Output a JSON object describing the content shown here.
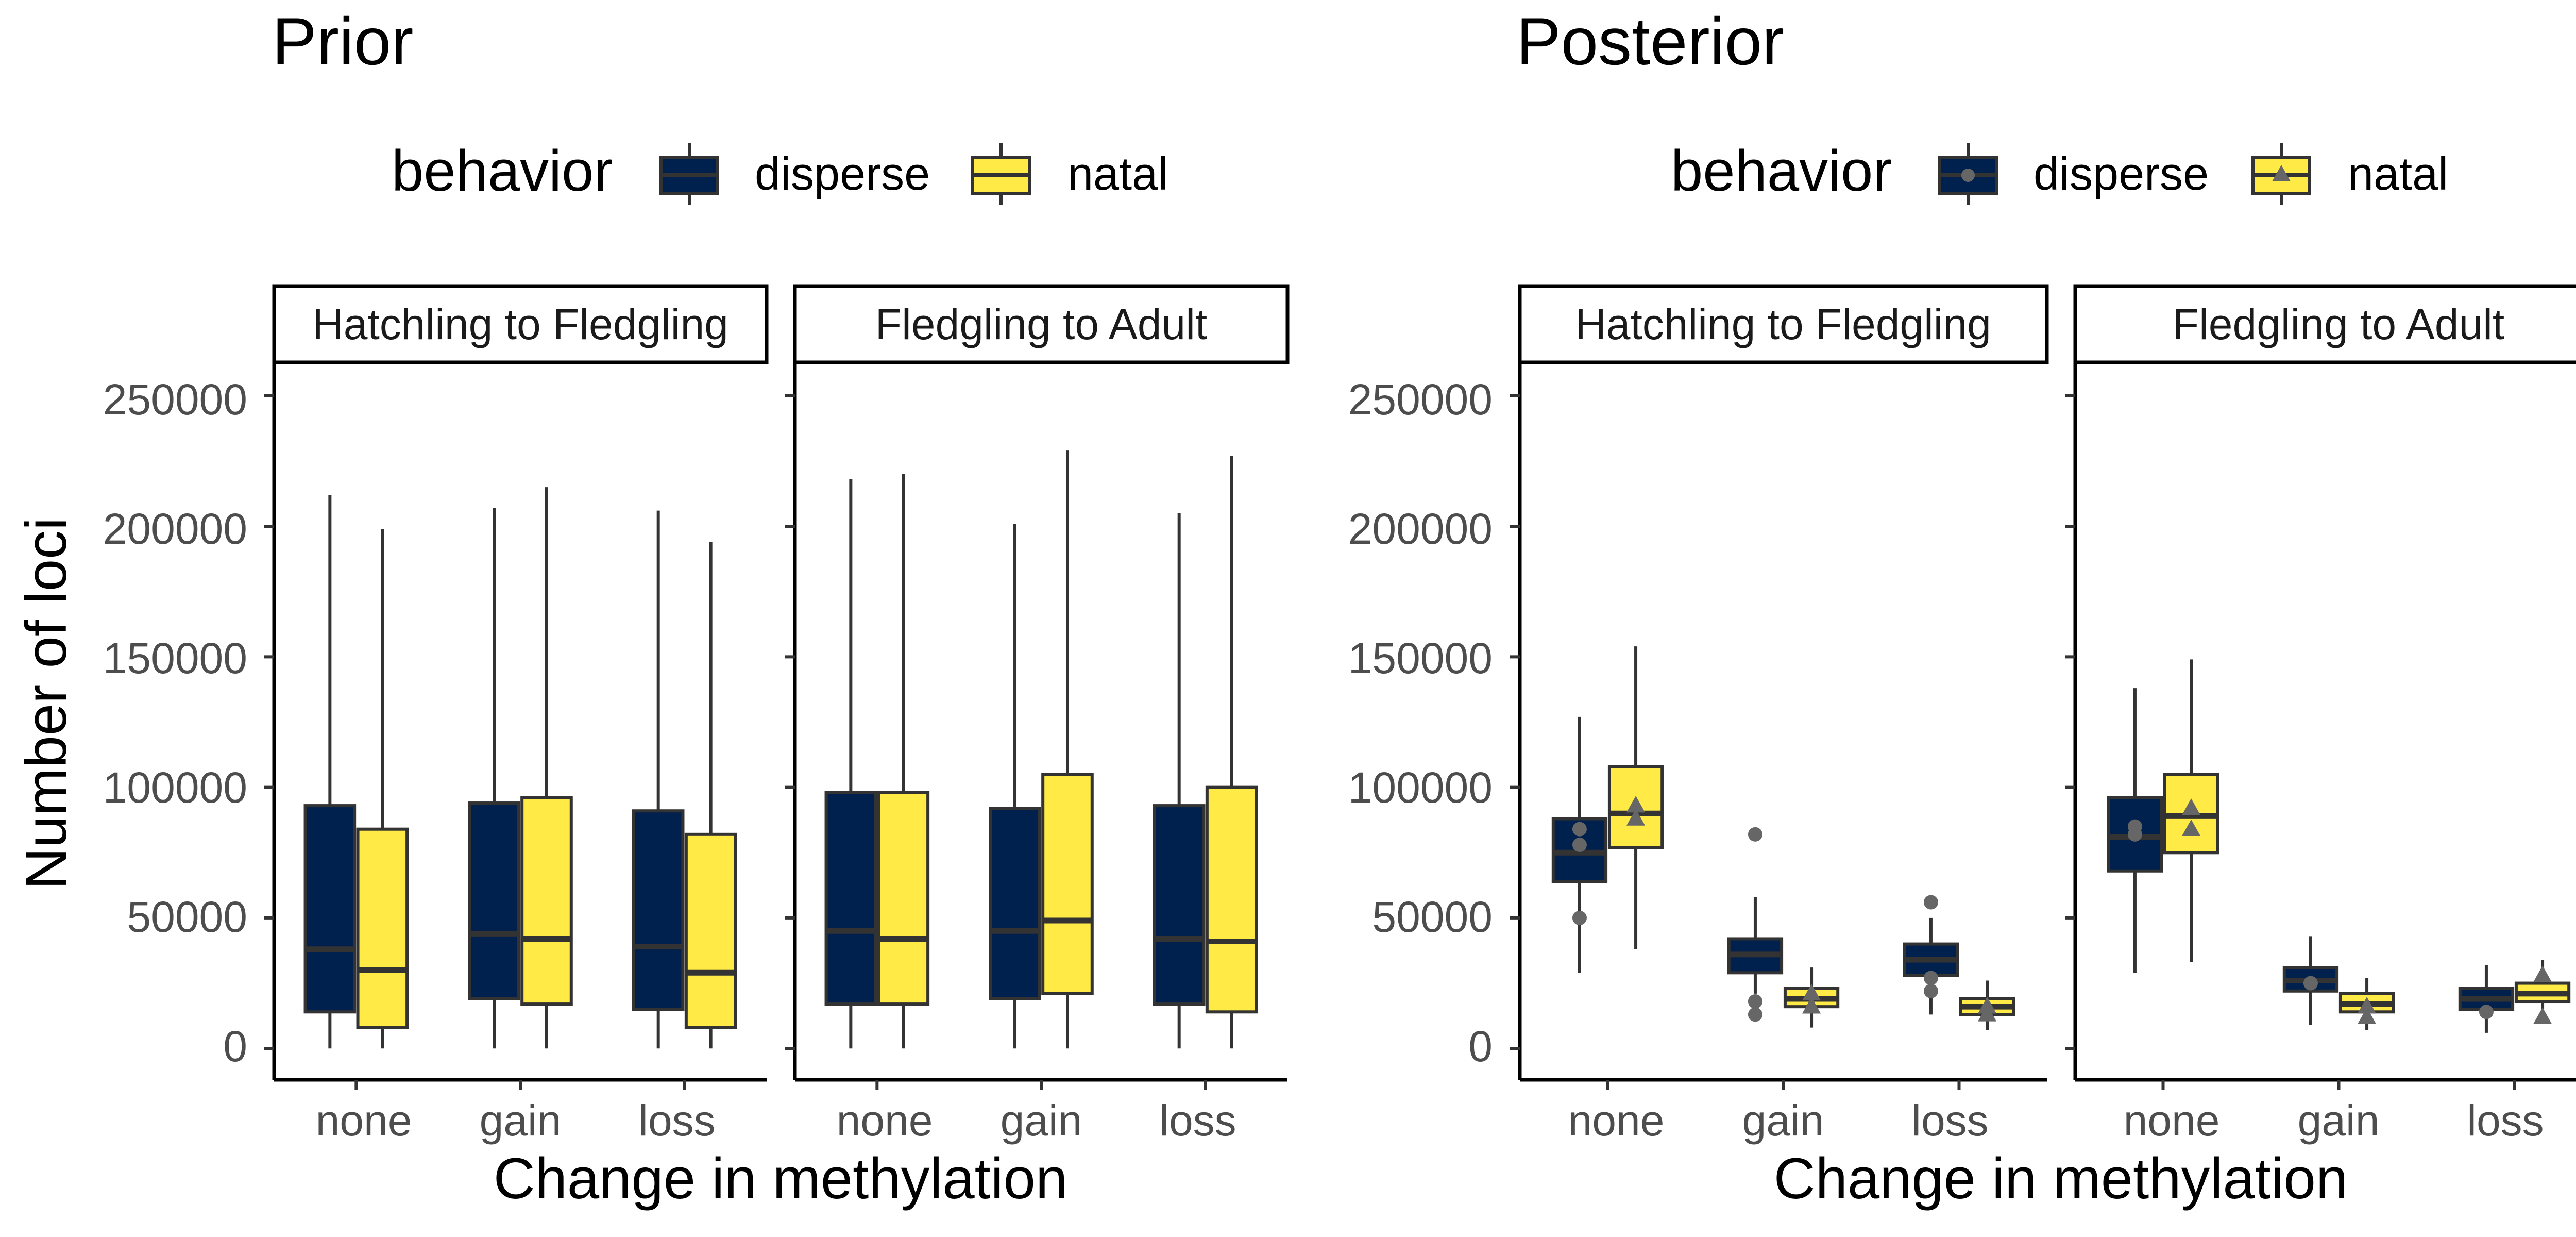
{
  "colors": {
    "disperse": "#00204D",
    "natal": "#FFEA46",
    "stroke": "#333333",
    "point": "#666666",
    "tick_text": "#4D4D4D"
  },
  "chart_data": [
    {
      "type": "box",
      "title": "Prior",
      "legend": {
        "title": "behavior",
        "entries": [
          "disperse",
          "natal"
        ],
        "position": "top"
      },
      "xlabel": "Change in methylation",
      "ylabel": "Number of loci",
      "ylim": [
        -12000,
        262000
      ],
      "yticks": [
        0,
        50000,
        100000,
        150000,
        200000,
        250000
      ],
      "ytick_labels": [
        "0",
        "50000",
        "100000",
        "150000",
        "200000",
        "250000"
      ],
      "categories": [
        "none",
        "gain",
        "loss"
      ],
      "grid": false,
      "facets": [
        {
          "label": "Hatchling to Fledgling",
          "boxes": [
            {
              "category": "none",
              "group": "disperse",
              "min": 0,
              "q1": 14000,
              "median": 38000,
              "q3": 93000,
              "max": 212000
            },
            {
              "category": "none",
              "group": "natal",
              "min": 0,
              "q1": 8000,
              "median": 30000,
              "q3": 84000,
              "max": 199000
            },
            {
              "category": "gain",
              "group": "disperse",
              "min": 0,
              "q1": 19000,
              "median": 44000,
              "q3": 94000,
              "max": 207000
            },
            {
              "category": "gain",
              "group": "natal",
              "min": 0,
              "q1": 17000,
              "median": 42000,
              "q3": 96000,
              "max": 215000
            },
            {
              "category": "loss",
              "group": "disperse",
              "min": 0,
              "q1": 15000,
              "median": 39000,
              "q3": 91000,
              "max": 206000
            },
            {
              "category": "loss",
              "group": "natal",
              "min": 0,
              "q1": 8000,
              "median": 29000,
              "q3": 82000,
              "max": 194000
            }
          ]
        },
        {
          "label": "Fledgling to Adult",
          "boxes": [
            {
              "category": "none",
              "group": "disperse",
              "min": 0,
              "q1": 17000,
              "median": 45000,
              "q3": 98000,
              "max": 218000
            },
            {
              "category": "none",
              "group": "natal",
              "min": 0,
              "q1": 17000,
              "median": 42000,
              "q3": 98000,
              "max": 220000
            },
            {
              "category": "gain",
              "group": "disperse",
              "min": 0,
              "q1": 19000,
              "median": 45000,
              "q3": 92000,
              "max": 201000
            },
            {
              "category": "gain",
              "group": "natal",
              "min": 0,
              "q1": 21000,
              "median": 49000,
              "q3": 105000,
              "max": 229000
            },
            {
              "category": "loss",
              "group": "disperse",
              "min": 0,
              "q1": 17000,
              "median": 42000,
              "q3": 93000,
              "max": 205000
            },
            {
              "category": "loss",
              "group": "natal",
              "min": 0,
              "q1": 14000,
              "median": 41000,
              "q3": 100000,
              "max": 227000
            }
          ]
        }
      ]
    },
    {
      "type": "box",
      "title": "Posterior",
      "legend": {
        "title": "behavior",
        "entries": [
          "disperse",
          "natal"
        ],
        "position": "top",
        "point_shapes": {
          "disperse": "circle",
          "natal": "triangle"
        }
      },
      "xlabel": "Change in methylation",
      "ylabel": "",
      "ylim": [
        -12000,
        262000
      ],
      "yticks": [
        0,
        50000,
        100000,
        150000,
        200000,
        250000
      ],
      "ytick_labels": [
        "0",
        "50000",
        "100000",
        "150000",
        "200000",
        "250000"
      ],
      "categories": [
        "none",
        "gain",
        "loss"
      ],
      "grid": false,
      "facets": [
        {
          "label": "Hatchling to Fledgling",
          "boxes": [
            {
              "category": "none",
              "group": "disperse",
              "min": 29000,
              "q1": 64000,
              "median": 75000,
              "q3": 88000,
              "max": 127000,
              "points": [
                50000,
                78000,
                84000
              ]
            },
            {
              "category": "none",
              "group": "natal",
              "min": 38000,
              "q1": 77000,
              "median": 90000,
              "q3": 108000,
              "max": 154000,
              "points": [
                88000,
                93000
              ]
            },
            {
              "category": "gain",
              "group": "disperse",
              "min": 21000,
              "q1": 29000,
              "median": 36000,
              "q3": 42000,
              "max": 58000,
              "points": [
                13000,
                18000,
                82000
              ]
            },
            {
              "category": "gain",
              "group": "natal",
              "min": 8000,
              "q1": 16000,
              "median": 19000,
              "q3": 23000,
              "max": 31000,
              "points": [
                16000,
                21000
              ]
            },
            {
              "category": "loss",
              "group": "disperse",
              "min": 13000,
              "q1": 28000,
              "median": 34000,
              "q3": 40000,
              "max": 50000,
              "points": [
                22000,
                27000,
                56000
              ]
            },
            {
              "category": "loss",
              "group": "natal",
              "min": 7000,
              "q1": 13000,
              "median": 16000,
              "q3": 19000,
              "max": 26000,
              "points": [
                13000,
                16000
              ]
            }
          ]
        },
        {
          "label": "Fledgling to Adult",
          "boxes": [
            {
              "category": "none",
              "group": "disperse",
              "min": 29000,
              "q1": 68000,
              "median": 81000,
              "q3": 96000,
              "max": 138000,
              "points": [
                82000,
                85000
              ]
            },
            {
              "category": "none",
              "group": "natal",
              "min": 33000,
              "q1": 75000,
              "median": 89000,
              "q3": 105000,
              "max": 149000,
              "points": [
                84000,
                92000
              ]
            },
            {
              "category": "gain",
              "group": "disperse",
              "min": 9000,
              "q1": 22000,
              "median": 26000,
              "q3": 31000,
              "max": 43000,
              "points": [
                25000
              ]
            },
            {
              "category": "gain",
              "group": "natal",
              "min": 7000,
              "q1": 14000,
              "median": 17000,
              "q3": 21000,
              "max": 27000,
              "points": [
                12000,
                16000
              ]
            },
            {
              "category": "loss",
              "group": "disperse",
              "min": 6000,
              "q1": 15000,
              "median": 19000,
              "q3": 23000,
              "max": 32000,
              "points": [
                14000
              ]
            },
            {
              "category": "loss",
              "group": "natal",
              "min": 12000,
              "q1": 18000,
              "median": 21000,
              "q3": 25000,
              "max": 34000,
              "points": [
                12000,
                28000
              ]
            }
          ]
        }
      ]
    }
  ]
}
